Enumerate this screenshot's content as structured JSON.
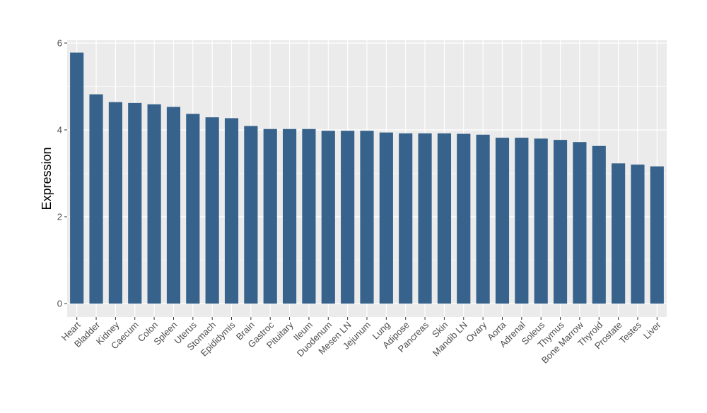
{
  "chart_data": {
    "type": "bar",
    "title": "",
    "xlabel": "",
    "ylabel": "Expression",
    "ylim": [
      0,
      6.1
    ],
    "yticks": [
      0,
      2,
      4,
      6
    ],
    "grid": true,
    "bar_color": "#36628b",
    "panel_color": "#ebebeb",
    "grid_color": "#ffffff",
    "categories": [
      "Heart",
      "Bladder",
      "Kidney",
      "Caecum",
      "Colon",
      "Spleen",
      "Uterus",
      "Stomach",
      "Epididymis",
      "Brain",
      "Gastroc",
      "Pituitary",
      "Ileum",
      "Duodenum",
      "Mesen LN",
      "Jejunum",
      "Lung",
      "Adipose",
      "Pancreas",
      "Skin",
      "Mandib LN",
      "Ovary",
      "Aorta",
      "Adrenal",
      "Soleus",
      "Thymus",
      "Bone Marrow",
      "Thyroid",
      "Prostate",
      "Testes",
      "Liver"
    ],
    "values": [
      5.78,
      4.82,
      4.64,
      4.62,
      4.59,
      4.53,
      4.37,
      4.29,
      4.27,
      4.09,
      4.02,
      4.02,
      4.02,
      3.98,
      3.98,
      3.98,
      3.94,
      3.92,
      3.92,
      3.92,
      3.91,
      3.89,
      3.82,
      3.82,
      3.8,
      3.77,
      3.72,
      3.63,
      3.23,
      3.2,
      3.16
    ]
  }
}
